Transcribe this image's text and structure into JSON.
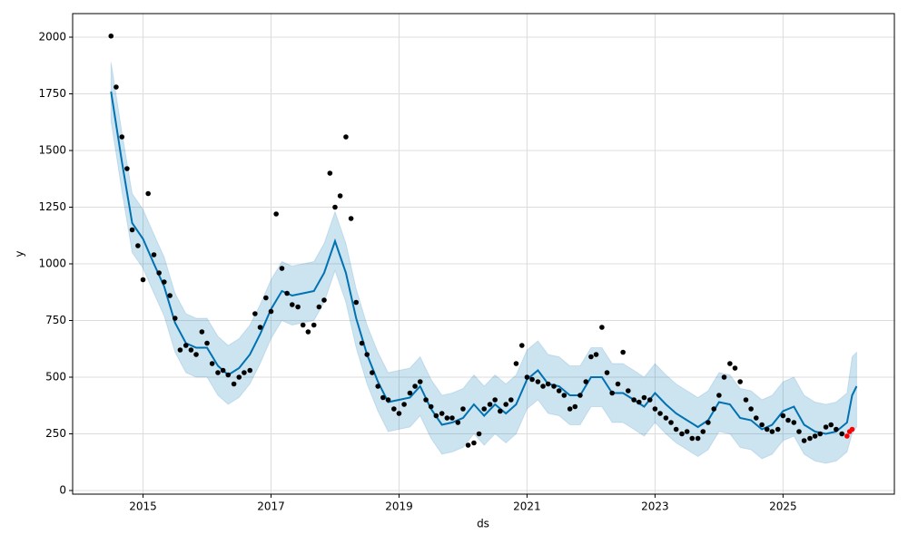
{
  "chart_data": {
    "type": "forecast",
    "x_label": "ds",
    "y_label": "y",
    "xlim": [
      2013.9,
      2026.74
    ],
    "ylim": [
      -16,
      2104
    ],
    "xticks": [
      2015,
      2017,
      2019,
      2021,
      2023,
      2025
    ],
    "yticks": [
      0,
      250,
      500,
      750,
      1000,
      1250,
      1500,
      1750,
      2000
    ],
    "grid": true,
    "series": [
      {
        "marker": "dot",
        "color": "#000000",
        "x": [
          2014.5,
          2014.58,
          2014.67,
          2014.75,
          2014.83,
          2014.92,
          2015.0,
          2015.08,
          2015.17,
          2015.25,
          2015.33,
          2015.42,
          2015.5,
          2015.58,
          2015.67,
          2015.75,
          2015.83,
          2015.92,
          2016.0,
          2016.08,
          2016.17,
          2016.25,
          2016.33,
          2016.42,
          2016.5,
          2016.58,
          2016.67,
          2016.75,
          2016.83,
          2016.92,
          2017.0,
          2017.08,
          2017.17,
          2017.25,
          2017.33,
          2017.42,
          2017.5,
          2017.58,
          2017.67,
          2017.75,
          2017.83,
          2017.92,
          2018.0,
          2018.08,
          2018.17,
          2018.25,
          2018.33,
          2018.42,
          2018.5,
          2018.58,
          2018.67,
          2018.75,
          2018.83,
          2018.92,
          2019.0,
          2019.08,
          2019.17,
          2019.25,
          2019.33,
          2019.42,
          2019.5,
          2019.58,
          2019.67,
          2019.75,
          2019.83,
          2019.92,
          2020.0,
          2020.08,
          2020.17,
          2020.25,
          2020.33,
          2020.42,
          2020.5,
          2020.58,
          2020.67,
          2020.75,
          2020.83,
          2020.92,
          2021.0,
          2021.08,
          2021.17,
          2021.25,
          2021.33,
          2021.42,
          2021.5,
          2021.58,
          2021.67,
          2021.75,
          2021.83,
          2021.92,
          2022.0,
          2022.08,
          2022.17,
          2022.25,
          2022.33,
          2022.42,
          2022.5,
          2022.58,
          2022.67,
          2022.75,
          2022.83,
          2022.92,
          2023.0,
          2023.08,
          2023.17,
          2023.25,
          2023.33,
          2023.42,
          2023.5,
          2023.58,
          2023.67,
          2023.75,
          2023.83,
          2023.92,
          2024.0,
          2024.08,
          2024.17,
          2024.25,
          2024.33,
          2024.42,
          2024.5,
          2024.58,
          2024.67,
          2024.75,
          2024.83,
          2024.92,
          2025.0,
          2025.08,
          2025.17,
          2025.25,
          2025.33,
          2025.42,
          2025.5,
          2025.58,
          2025.67,
          2025.75,
          2025.83,
          2025.92
        ],
        "values": [
          2005,
          1780,
          1560,
          1420,
          1150,
          1080,
          930,
          1310,
          1040,
          960,
          920,
          860,
          760,
          620,
          640,
          620,
          600,
          700,
          650,
          560,
          520,
          530,
          510,
          470,
          500,
          520,
          530,
          780,
          720,
          850,
          790,
          1220,
          980,
          870,
          820,
          810,
          730,
          700,
          730,
          810,
          840,
          1400,
          1250,
          1300,
          1560,
          1200,
          830,
          650,
          600,
          520,
          460,
          410,
          400,
          360,
          340,
          380,
          430,
          460,
          480,
          400,
          370,
          330,
          340,
          320,
          320,
          300,
          360,
          200,
          210,
          250,
          360,
          380,
          400,
          350,
          380,
          400,
          560,
          640,
          500,
          490,
          480,
          460,
          470,
          460,
          440,
          420,
          360,
          370,
          420,
          480,
          590,
          600,
          720,
          520,
          430,
          470,
          610,
          440,
          400,
          390,
          410,
          400,
          360,
          340,
          320,
          300,
          270,
          250,
          260,
          230,
          230,
          260,
          300,
          360,
          420,
          500,
          560,
          540,
          480,
          400,
          360,
          320,
          290,
          270,
          260,
          270,
          330,
          310,
          300,
          260,
          220,
          230,
          240,
          250,
          280,
          290,
          270,
          250
        ]
      },
      {
        "marker": "line",
        "color": "#0072B2",
        "x": [
          2014.5,
          2014.67,
          2014.83,
          2015.0,
          2015.17,
          2015.33,
          2015.5,
          2015.67,
          2015.83,
          2016.0,
          2016.17,
          2016.33,
          2016.5,
          2016.67,
          2016.83,
          2017.0,
          2017.17,
          2017.33,
          2017.5,
          2017.67,
          2017.83,
          2018.0,
          2018.17,
          2018.33,
          2018.5,
          2018.67,
          2018.83,
          2019.0,
          2019.17,
          2019.33,
          2019.5,
          2019.67,
          2019.83,
          2020.0,
          2020.17,
          2020.33,
          2020.5,
          2020.67,
          2020.83,
          2021.0,
          2021.17,
          2021.33,
          2021.5,
          2021.67,
          2021.83,
          2022.0,
          2022.17,
          2022.33,
          2022.5,
          2022.67,
          2022.83,
          2023.0,
          2023.17,
          2023.33,
          2023.5,
          2023.67,
          2023.83,
          2024.0,
          2024.17,
          2024.33,
          2024.5,
          2024.67,
          2024.83,
          2025.0,
          2025.17,
          2025.33,
          2025.5,
          2025.67,
          2025.83,
          2026.0,
          2026.08,
          2026.15
        ],
        "values": [
          1760,
          1450,
          1180,
          1110,
          1000,
          900,
          740,
          650,
          630,
          630,
          550,
          510,
          540,
          600,
          690,
          800,
          880,
          860,
          870,
          880,
          960,
          1100,
          960,
          760,
          600,
          480,
          390,
          400,
          410,
          460,
          360,
          290,
          300,
          320,
          380,
          330,
          380,
          340,
          380,
          490,
          530,
          470,
          460,
          420,
          420,
          500,
          500,
          430,
          430,
          400,
          370,
          430,
          380,
          340,
          310,
          280,
          310,
          390,
          380,
          320,
          310,
          270,
          290,
          350,
          370,
          290,
          260,
          250,
          260,
          300,
          420,
          460
        ],
        "lower": [
          1630,
          1320,
          1050,
          980,
          870,
          770,
          610,
          520,
          500,
          500,
          420,
          380,
          410,
          470,
          560,
          670,
          750,
          730,
          740,
          750,
          830,
          970,
          830,
          630,
          470,
          350,
          260,
          270,
          280,
          330,
          230,
          160,
          170,
          190,
          250,
          200,
          250,
          210,
          250,
          360,
          400,
          340,
          330,
          290,
          290,
          370,
          370,
          300,
          300,
          270,
          240,
          300,
          250,
          210,
          180,
          150,
          180,
          260,
          250,
          190,
          180,
          140,
          160,
          220,
          240,
          160,
          130,
          120,
          130,
          170,
          250,
          280
        ],
        "upper": [
          1890,
          1580,
          1310,
          1240,
          1130,
          1030,
          870,
          780,
          760,
          760,
          680,
          640,
          670,
          730,
          820,
          930,
          1010,
          990,
          1000,
          1010,
          1090,
          1230,
          1090,
          890,
          730,
          610,
          520,
          530,
          540,
          590,
          490,
          420,
          430,
          450,
          510,
          460,
          510,
          470,
          510,
          620,
          660,
          600,
          590,
          550,
          550,
          630,
          630,
          560,
          560,
          530,
          500,
          560,
          510,
          470,
          440,
          410,
          440,
          520,
          510,
          450,
          440,
          400,
          420,
          480,
          500,
          420,
          390,
          380,
          390,
          430,
          590,
          610
        ]
      },
      {
        "marker": "dot",
        "color": "#ff0000",
        "x": [
          2026.0,
          2026.04,
          2026.08
        ],
        "values": [
          240,
          260,
          270
        ]
      }
    ]
  }
}
